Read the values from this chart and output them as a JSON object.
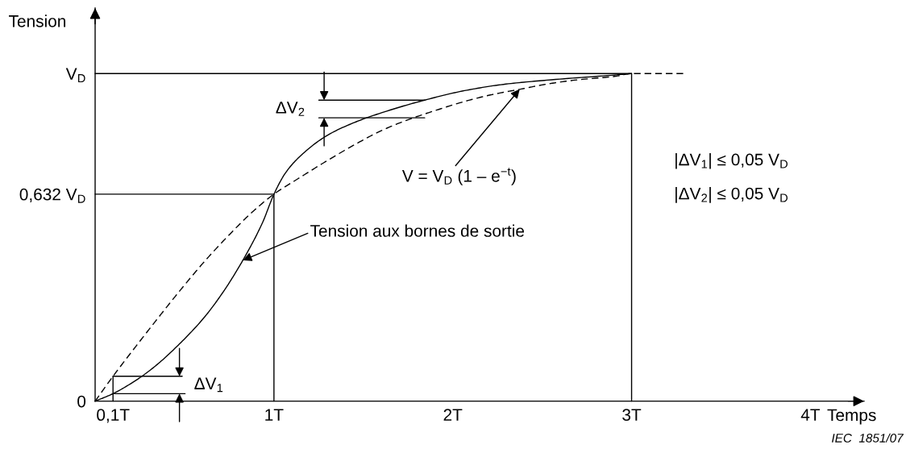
{
  "chart_data": {
    "type": "line",
    "xlabel": "Temps",
    "ylabel": "Tension",
    "xlim": [
      0,
      4.3
    ],
    "ylim": [
      0,
      1.2
    ],
    "xticks": [
      {
        "value": 0.1,
        "label": "0,1T"
      },
      {
        "value": 1,
        "label": "1T"
      },
      {
        "value": 2,
        "label": "2T"
      },
      {
        "value": 3,
        "label": "3T"
      },
      {
        "value": 4,
        "label": "4T"
      }
    ],
    "yticks": [
      0,
      {
        "value": 0.632,
        "label": "0,632 V$_{D}$"
      },
      {
        "value": 1,
        "label": "V$_{D}$"
      }
    ],
    "series": [
      {
        "name": "Tension aux bornes de sortie",
        "color": "#000000",
        "line_style": "solid",
        "x": [
          0,
          0.1,
          0.24,
          0.336,
          0.472,
          0.609,
          0.718,
          0.826,
          0.936,
          1,
          1.066,
          1.143,
          1.297,
          1.451,
          1.605,
          1.843,
          2.066,
          2.297,
          2.527,
          2.912,
          3
        ],
        "values": [
          0,
          0.023,
          0.068,
          0.107,
          0.175,
          0.255,
          0.335,
          0.43,
          0.545,
          0.632,
          0.698,
          0.746,
          0.811,
          0.851,
          0.881,
          0.919,
          0.948,
          0.968,
          0.98,
          0.996,
          1
        ]
      },
      {
        "name": "V = V$_{D}$ (1 – e$^{−t}$)",
        "color": "#000000",
        "line_style": "dashed",
        "x": [
          0,
          0.1,
          0.199,
          0.336,
          0.472,
          0.609,
          0.745,
          0.868,
          1,
          1.143,
          1.297,
          1.451,
          1.605,
          1.759,
          1.912,
          2.066,
          2.22,
          2.374,
          2.527,
          2.682,
          2.912,
          3,
          3.29
        ],
        "values": [
          0,
          0.076,
          0.147,
          0.243,
          0.336,
          0.425,
          0.505,
          0.572,
          0.632,
          0.682,
          0.734,
          0.783,
          0.827,
          0.861,
          0.889,
          0.915,
          0.936,
          0.952,
          0.968,
          0.98,
          0.992,
          1,
          1
        ]
      },
      {
        "color": "#000000",
        "line_style": "solid",
        "x": [
          0,
          1,
          1
        ],
        "values": [
          0.632,
          0.632,
          0
        ]
      },
      {
        "color": "#000000",
        "line_style": "solid",
        "x": [
          0,
          3,
          3
        ],
        "values": [
          1,
          1,
          0
        ]
      },
      {
        "color": "#000000",
        "line_style": "solid",
        "x": [
          0.1,
          0.1
        ],
        "values": [
          0,
          0.076
        ]
      },
      {
        "color": "#000000",
        "line_style": "solid",
        "x": [
          0.1,
          0.487
        ],
        "values": [
          0.076,
          0.076
        ]
      },
      {
        "color": "#000000",
        "line_style": "solid",
        "x": [
          0.1,
          0.503
        ],
        "values": [
          0.023,
          0.023
        ]
      },
      {
        "color": "#000000",
        "line_style": "solid",
        "x": [
          1.251,
          1.843
        ],
        "values": [
          0.919,
          0.919
        ]
      },
      {
        "color": "#000000",
        "line_style": "solid",
        "x": [
          1.251,
          1.843
        ],
        "values": [
          0.865,
          0.865
        ]
      }
    ],
    "annotations": [
      "ΔV$_{1}$",
      "ΔV$_{2}$",
      "|ΔV$_{1}$| ≤ 0,05 V$_{D}$",
      "|ΔV$_{2}$| ≤ 0,05 V$_{D}$",
      "IEC  1851/07"
    ]
  }
}
